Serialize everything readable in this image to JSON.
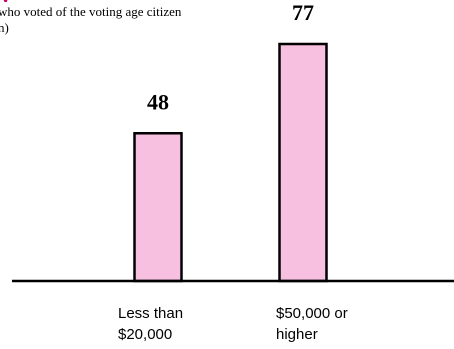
{
  "chart_data": {
    "type": "bar",
    "title": "",
    "subtitle_lines": [
      "who voted of the voting age citizen",
      "n)"
    ],
    "categories": [
      [
        "Less than",
        "$20,000"
      ],
      [
        "$50,000 or",
        "higher"
      ]
    ],
    "values": [
      48,
      77
    ],
    "ylim": [
      0,
      77
    ],
    "xlabel": "",
    "ylabel": "",
    "grid": false,
    "legend": "none",
    "bar_color": "#f7bfe0",
    "bar_edge_color": "#000000",
    "title_color": "#cc0066"
  }
}
